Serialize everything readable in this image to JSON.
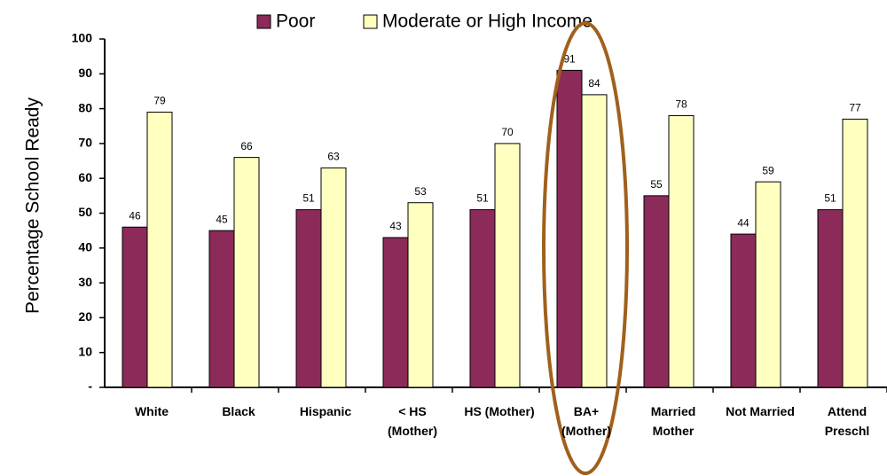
{
  "chart_data": {
    "type": "bar",
    "categories": [
      "White",
      "Black",
      "Hispanic",
      "< HS\n(Mother)",
      "HS (Mother)",
      "BA+\n(Mother)",
      "Married\nMother",
      "Not Married",
      "Attend\nPreschl"
    ],
    "series": [
      {
        "name": "Poor",
        "color": "#8c2a5a",
        "values": [
          46,
          45,
          51,
          43,
          51,
          91,
          55,
          44,
          51
        ]
      },
      {
        "name": "Moderate or High Income",
        "color": "#ffffc0",
        "values": [
          79,
          66,
          63,
          53,
          70,
          84,
          78,
          59,
          77
        ]
      }
    ],
    "ylabel": "Percentage School Ready",
    "ylim": [
      0,
      100
    ],
    "yticks": [
      {
        "value": 0,
        "label": "-"
      },
      10,
      20,
      30,
      40,
      50,
      60,
      70,
      80,
      90,
      100
    ],
    "grid": false
  }
}
